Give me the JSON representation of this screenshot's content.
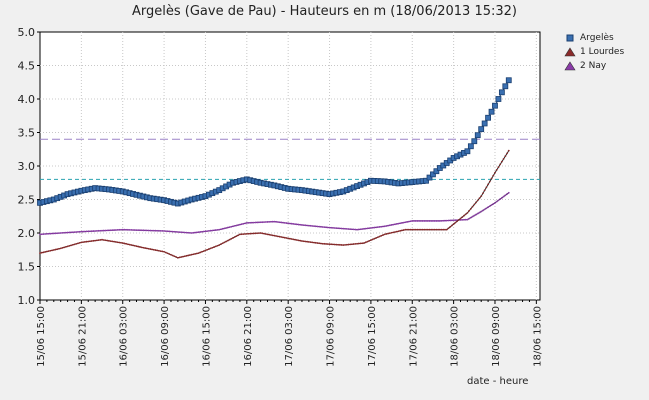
{
  "chart_data": {
    "type": "line",
    "title": "Argelès (Gave de Pau) - Hauteurs en m (18/06/2013 15:32)",
    "xlabel": "date - heure",
    "ylabel": "",
    "ylim": [
      1.0,
      5.0
    ],
    "yticks": [
      "1.0",
      "1.5",
      "2.0",
      "2.5",
      "3.0",
      "3.5",
      "4.0",
      "4.5",
      "5.0"
    ],
    "xticks": [
      "15/06 15:00",
      "15/06 21:00",
      "16/06 03:00",
      "16/06 09:00",
      "16/06 15:00",
      "16/06 21:00",
      "17/06 03:00",
      "17/06 09:00",
      "17/06 15:00",
      "17/06 21:00",
      "18/06 03:00",
      "18/06 09:00",
      "18/06 15:00"
    ],
    "x_hours_start": 0,
    "x_hours_end": 72.53,
    "grid": true,
    "legend_position": "top-right outside",
    "series": [
      {
        "name": "Argelès",
        "color": "#3a6fb0",
        "marker": "square",
        "points": [
          [
            0,
            2.45
          ],
          [
            2,
            2.5
          ],
          [
            4,
            2.58
          ],
          [
            6,
            2.63
          ],
          [
            8,
            2.67
          ],
          [
            10,
            2.65
          ],
          [
            12,
            2.62
          ],
          [
            14,
            2.57
          ],
          [
            16,
            2.52
          ],
          [
            18,
            2.49
          ],
          [
            20,
            2.44
          ],
          [
            22,
            2.5
          ],
          [
            24,
            2.55
          ],
          [
            26,
            2.64
          ],
          [
            28,
            2.75
          ],
          [
            30,
            2.8
          ],
          [
            32,
            2.75
          ],
          [
            34,
            2.71
          ],
          [
            36,
            2.66
          ],
          [
            38,
            2.64
          ],
          [
            40,
            2.61
          ],
          [
            42,
            2.58
          ],
          [
            44,
            2.62
          ],
          [
            46,
            2.7
          ],
          [
            48,
            2.78
          ],
          [
            50,
            2.77
          ],
          [
            52,
            2.74
          ],
          [
            54,
            2.76
          ],
          [
            56,
            2.78
          ],
          [
            58,
            2.97
          ],
          [
            60,
            3.12
          ],
          [
            62,
            3.22
          ],
          [
            63,
            3.37
          ],
          [
            64,
            3.55
          ],
          [
            65,
            3.72
          ],
          [
            66,
            3.9
          ],
          [
            67,
            4.1
          ],
          [
            68,
            4.28
          ]
        ],
        "threshold": 3.4,
        "threshold2": 2.8
      },
      {
        "name": "1 Lourdes",
        "color": "#8b2a2a",
        "marker": "triangle",
        "points": [
          [
            0,
            1.7
          ],
          [
            3,
            1.77
          ],
          [
            6,
            1.86
          ],
          [
            9,
            1.9
          ],
          [
            12,
            1.85
          ],
          [
            15,
            1.78
          ],
          [
            18,
            1.72
          ],
          [
            20,
            1.63
          ],
          [
            23,
            1.7
          ],
          [
            26,
            1.82
          ],
          [
            29,
            1.98
          ],
          [
            32,
            2.0
          ],
          [
            35,
            1.94
          ],
          [
            38,
            1.88
          ],
          [
            41,
            1.84
          ],
          [
            44,
            1.82
          ],
          [
            47,
            1.85
          ],
          [
            50,
            1.98
          ],
          [
            53,
            2.05
          ],
          [
            56,
            2.05
          ],
          [
            59,
            2.05
          ],
          [
            62,
            2.3
          ],
          [
            64,
            2.55
          ],
          [
            66,
            2.9
          ],
          [
            68,
            3.23
          ]
        ]
      },
      {
        "name": "2 Nay",
        "color": "#8a3aa8",
        "marker": "triangle",
        "points": [
          [
            0,
            1.98
          ],
          [
            6,
            2.02
          ],
          [
            12,
            2.05
          ],
          [
            18,
            2.03
          ],
          [
            22,
            2.0
          ],
          [
            26,
            2.05
          ],
          [
            30,
            2.15
          ],
          [
            34,
            2.17
          ],
          [
            38,
            2.12
          ],
          [
            42,
            2.08
          ],
          [
            46,
            2.05
          ],
          [
            50,
            2.1
          ],
          [
            54,
            2.18
          ],
          [
            58,
            2.18
          ],
          [
            62,
            2.2
          ],
          [
            64,
            2.32
          ],
          [
            66,
            2.45
          ],
          [
            68,
            2.6
          ]
        ]
      }
    ]
  }
}
